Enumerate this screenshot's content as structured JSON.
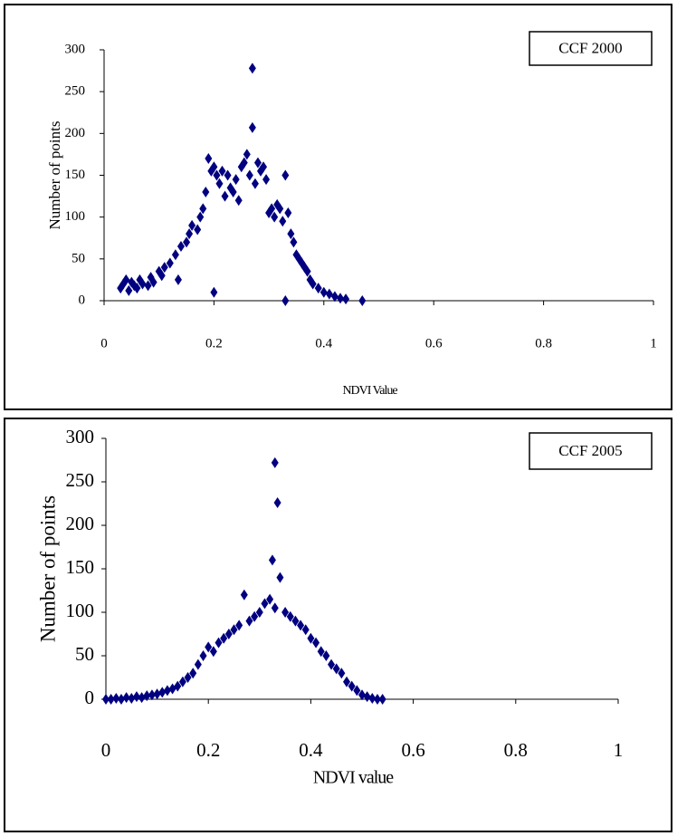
{
  "chart_data": [
    {
      "type": "scatter",
      "x_label": "NDVI Value",
      "y_label": "Number of points",
      "x": [
        0.03,
        0.035,
        0.04,
        0.045,
        0.05,
        0.055,
        0.06,
        0.065,
        0.07,
        0.08,
        0.085,
        0.09,
        0.1,
        0.105,
        0.11,
        0.12,
        0.13,
        0.135,
        0.14,
        0.15,
        0.155,
        0.16,
        0.17,
        0.175,
        0.18,
        0.185,
        0.19,
        0.195,
        0.2,
        0.2,
        0.205,
        0.21,
        0.215,
        0.22,
        0.225,
        0.23,
        0.235,
        0.24,
        0.245,
        0.25,
        0.255,
        0.26,
        0.265,
        0.27,
        0.27,
        0.275,
        0.28,
        0.285,
        0.29,
        0.295,
        0.3,
        0.305,
        0.31,
        0.315,
        0.32,
        0.325,
        0.33,
        0.33,
        0.335,
        0.34,
        0.345,
        0.35,
        0.355,
        0.36,
        0.365,
        0.37,
        0.375,
        0.38,
        0.39,
        0.4,
        0.41,
        0.42,
        0.43,
        0.44,
        0.47
      ],
      "series": [
        {
          "name": "CCF 2000",
          "color": "#000080",
          "values": [
            15,
            20,
            25,
            12,
            22,
            18,
            15,
            25,
            20,
            18,
            28,
            22,
            35,
            30,
            40,
            45,
            55,
            25,
            65,
            70,
            80,
            90,
            85,
            100,
            110,
            130,
            170,
            155,
            10,
            160,
            150,
            140,
            155,
            125,
            150,
            135,
            130,
            145,
            120,
            160,
            165,
            175,
            150,
            278,
            207,
            140,
            165,
            155,
            160,
            145,
            105,
            110,
            100,
            115,
            110,
            95,
            150,
            0,
            105,
            80,
            70,
            55,
            50,
            45,
            40,
            35,
            25,
            20,
            15,
            10,
            8,
            5,
            3,
            2,
            0
          ]
        }
      ],
      "xlim": [
        0,
        1
      ],
      "xticks": [
        0,
        0.2,
        0.4,
        0.6,
        0.8,
        1
      ],
      "ylim": [
        0,
        300
      ],
      "yticks": [
        0,
        50,
        100,
        150,
        200,
        250,
        300
      ],
      "legend": "top-right"
    },
    {
      "type": "scatter",
      "x_label": "NDVI value",
      "y_label": "Number of points",
      "x": [
        0,
        0.01,
        0.02,
        0.03,
        0.04,
        0.05,
        0.06,
        0.07,
        0.08,
        0.09,
        0.1,
        0.11,
        0.12,
        0.13,
        0.14,
        0.15,
        0.16,
        0.17,
        0.18,
        0.19,
        0.2,
        0.21,
        0.22,
        0.23,
        0.24,
        0.25,
        0.26,
        0.27,
        0.28,
        0.29,
        0.3,
        0.31,
        0.32,
        0.325,
        0.33,
        0.33,
        0.335,
        0.34,
        0.35,
        0.36,
        0.37,
        0.38,
        0.39,
        0.4,
        0.41,
        0.42,
        0.43,
        0.44,
        0.45,
        0.46,
        0.47,
        0.48,
        0.49,
        0.5,
        0.51,
        0.52,
        0.53,
        0.54
      ],
      "series": [
        {
          "name": "CCF 2005",
          "color": "#000080",
          "values": [
            0,
            0,
            1,
            0,
            2,
            1,
            3,
            2,
            4,
            5,
            6,
            8,
            10,
            12,
            15,
            20,
            25,
            30,
            40,
            50,
            60,
            55,
            65,
            70,
            75,
            80,
            85,
            120,
            90,
            95,
            100,
            110,
            115,
            160,
            272,
            105,
            226,
            140,
            100,
            95,
            90,
            85,
            80,
            70,
            65,
            55,
            50,
            40,
            35,
            30,
            20,
            15,
            10,
            5,
            3,
            1,
            0,
            0
          ]
        }
      ],
      "xlim": [
        0,
        1
      ],
      "xticks": [
        0,
        0.2,
        0.4,
        0.6,
        0.8,
        1
      ],
      "ylim": [
        0,
        300
      ],
      "yticks": [
        0,
        50,
        100,
        150,
        200,
        250,
        300
      ],
      "legend": "top-right"
    }
  ]
}
